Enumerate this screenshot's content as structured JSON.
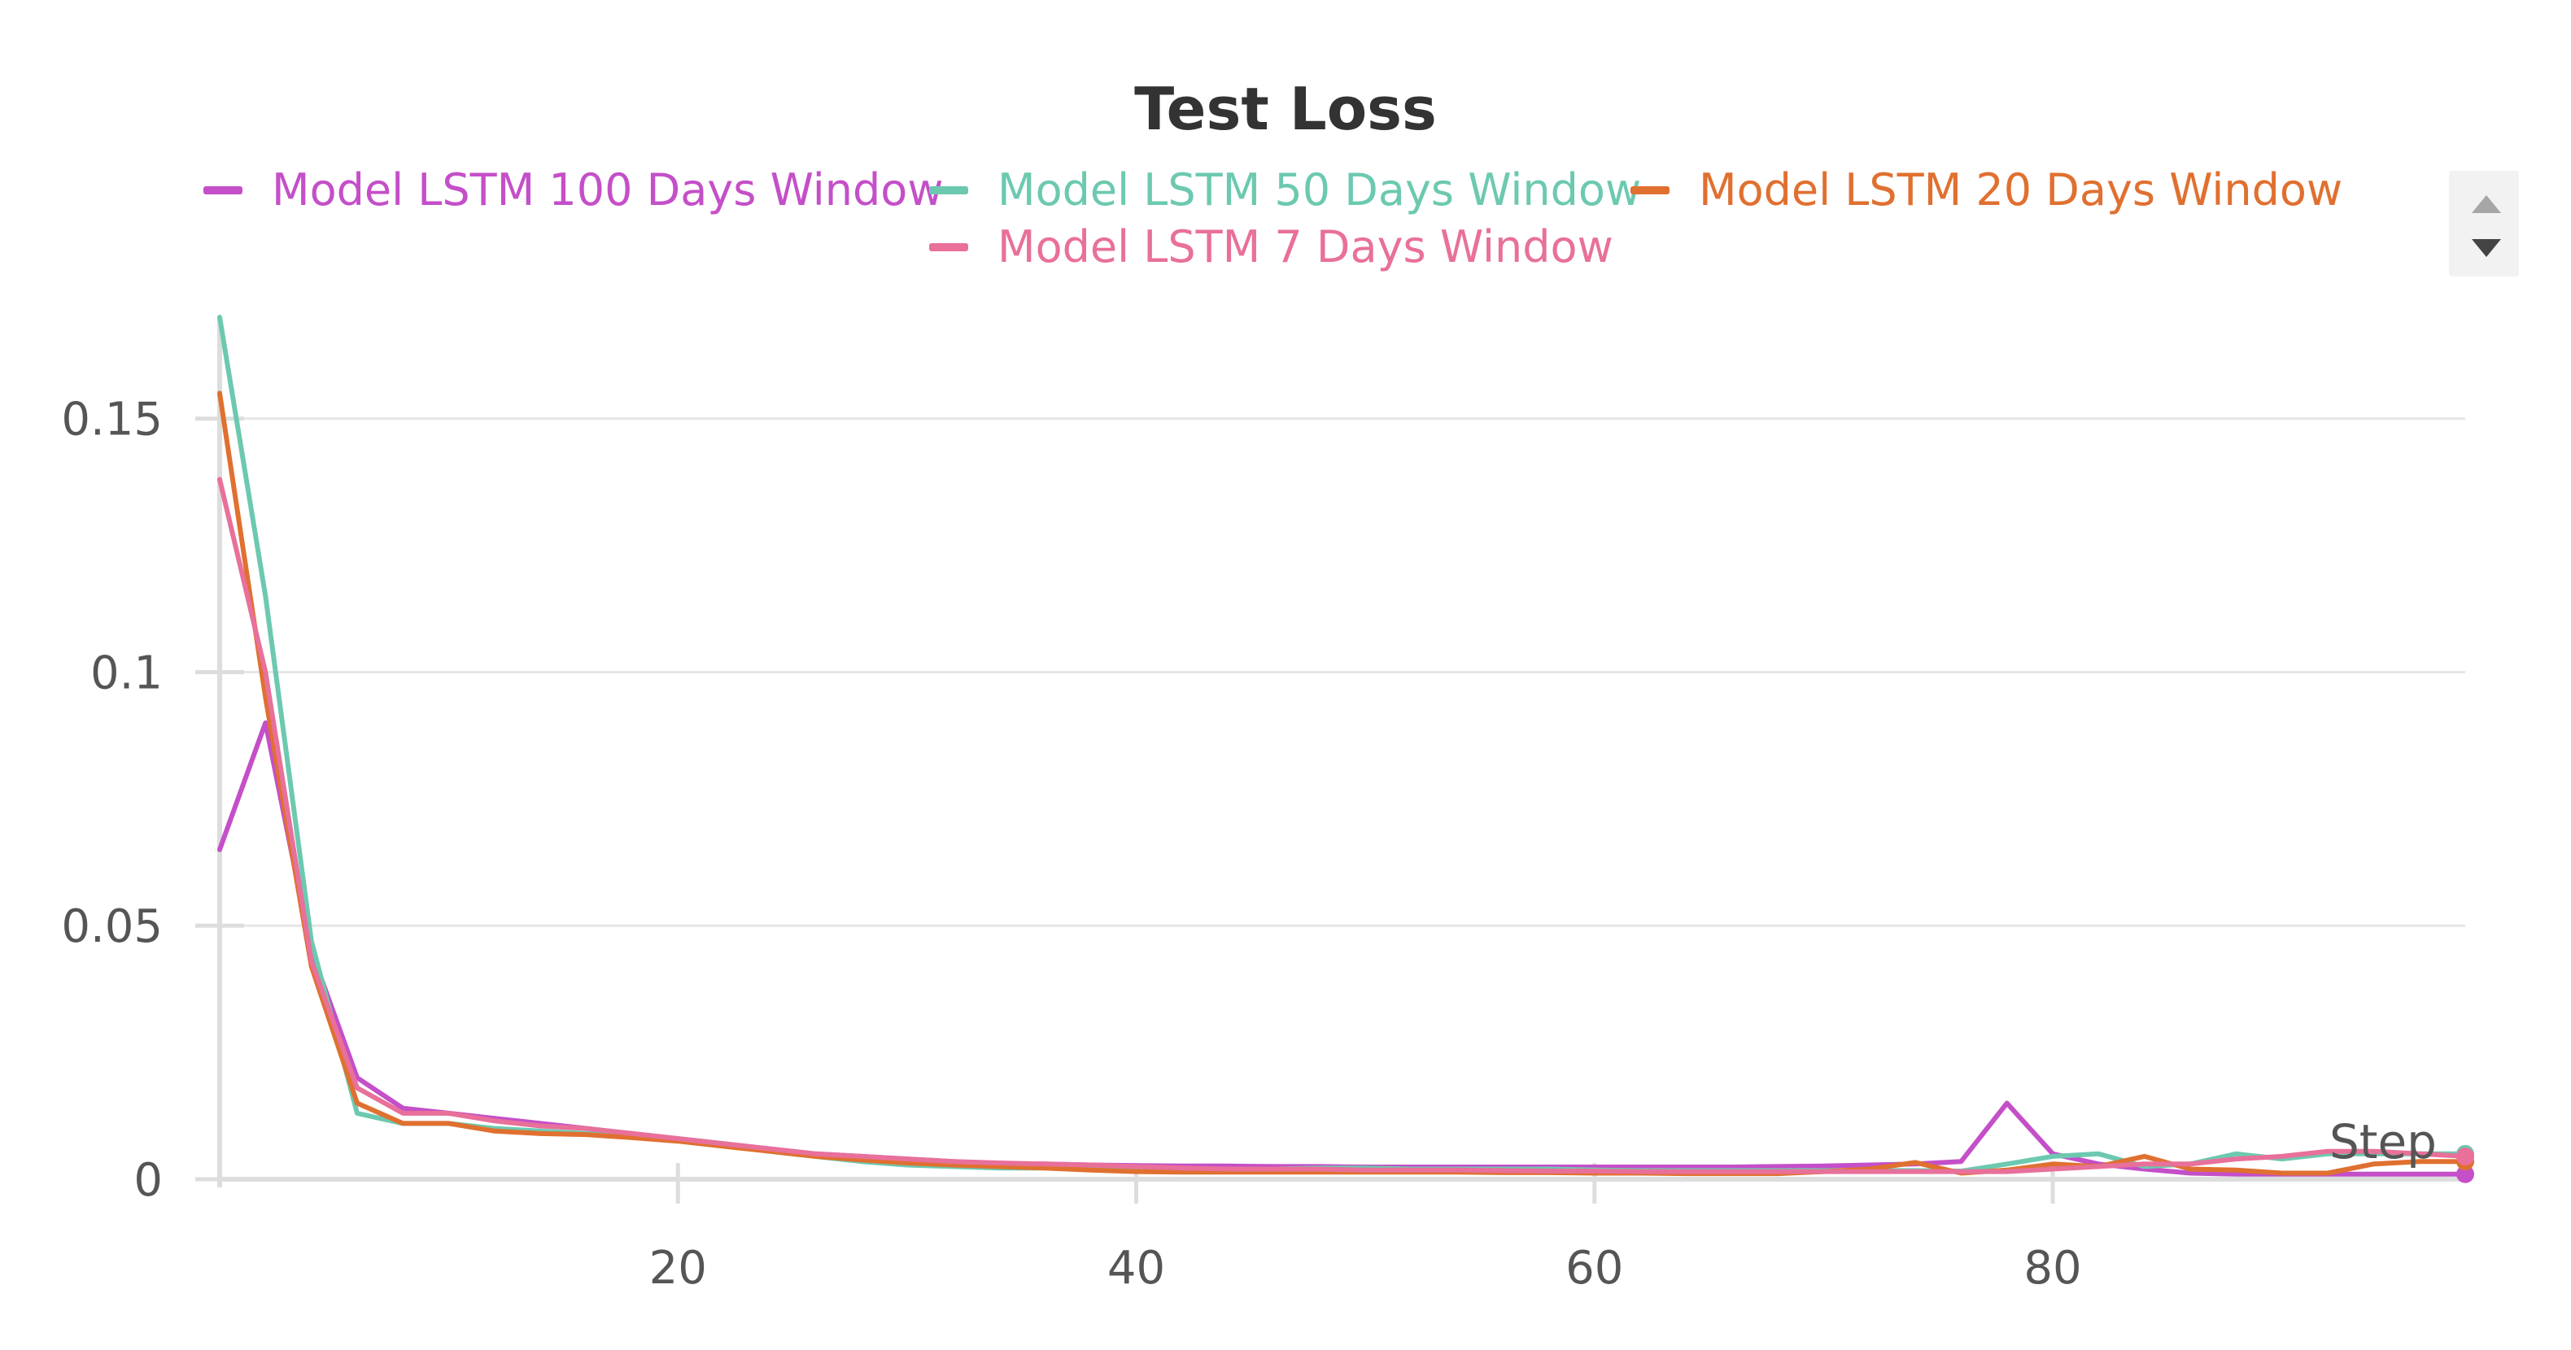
{
  "chart_data": {
    "type": "line",
    "title": "Test Loss",
    "xlabel": "Step",
    "ylabel": "",
    "xlim": [
      0,
      98
    ],
    "ylim": [
      0,
      0.17
    ],
    "xticks": [
      20,
      40,
      60,
      80
    ],
    "xtick_labels": [
      "20",
      "40",
      "60",
      "80"
    ],
    "yticks": [
      0,
      0.05,
      0.1,
      0.15
    ],
    "ytick_labels": [
      "0",
      "0.05",
      "0.1",
      "0.15"
    ],
    "grid": true,
    "legend_position": "top",
    "x": [
      0,
      2,
      4,
      6,
      8,
      10,
      12,
      14,
      16,
      18,
      20,
      22,
      24,
      26,
      28,
      30,
      32,
      34,
      36,
      38,
      40,
      42,
      44,
      46,
      48,
      50,
      52,
      54,
      56,
      58,
      60,
      62,
      64,
      66,
      68,
      70,
      72,
      74,
      76,
      78,
      80,
      82,
      84,
      86,
      88,
      90,
      92,
      94,
      96,
      98
    ],
    "series": [
      {
        "name": "Model LSTM 100 Days Window",
        "color": "#c44fc8",
        "values": [
          0.065,
          0.09,
          0.045,
          0.02,
          0.014,
          0.013,
          0.012,
          0.011,
          0.01,
          0.009,
          0.008,
          0.007,
          0.006,
          0.005,
          0.0045,
          0.004,
          0.0035,
          0.003,
          0.003,
          0.0028,
          0.0027,
          0.0026,
          0.0026,
          0.0025,
          0.0025,
          0.0024,
          0.0024,
          0.0024,
          0.0024,
          0.0024,
          0.0024,
          0.0024,
          0.0024,
          0.0024,
          0.0025,
          0.0026,
          0.0028,
          0.003,
          0.0035,
          0.015,
          0.005,
          0.003,
          0.002,
          0.0012,
          0.001,
          0.001,
          0.001,
          0.001,
          0.001,
          0.001
        ]
      },
      {
        "name": "Model LSTM 50 Days Window",
        "color": "#6cc9b0",
        "values": [
          0.17,
          0.115,
          0.047,
          0.013,
          0.011,
          0.011,
          0.01,
          0.0095,
          0.009,
          0.0085,
          0.008,
          0.007,
          0.0055,
          0.0045,
          0.0035,
          0.0028,
          0.0025,
          0.0022,
          0.0022,
          0.0022,
          0.002,
          0.002,
          0.002,
          0.002,
          0.0022,
          0.0022,
          0.002,
          0.002,
          0.002,
          0.002,
          0.0018,
          0.0017,
          0.0017,
          0.0017,
          0.0017,
          0.0017,
          0.0017,
          0.0017,
          0.0016,
          0.003,
          0.0045,
          0.005,
          0.0025,
          0.003,
          0.005,
          0.004,
          0.005,
          0.005,
          0.005,
          0.005
        ]
      },
      {
        "name": "Model LSTM 20 Days Window",
        "color": "#e07030",
        "values": [
          0.155,
          0.095,
          0.042,
          0.015,
          0.011,
          0.011,
          0.0095,
          0.009,
          0.0088,
          0.0082,
          0.0075,
          0.0065,
          0.0055,
          0.0045,
          0.0038,
          0.0032,
          0.0028,
          0.0025,
          0.0022,
          0.0018,
          0.0015,
          0.0014,
          0.0014,
          0.0014,
          0.0014,
          0.0014,
          0.0014,
          0.0014,
          0.0013,
          0.0013,
          0.0012,
          0.0012,
          0.0011,
          0.0011,
          0.0011,
          0.0015,
          0.002,
          0.0033,
          0.0012,
          0.0018,
          0.003,
          0.0025,
          0.0045,
          0.002,
          0.0018,
          0.0012,
          0.0012,
          0.003,
          0.0035,
          0.0035
        ]
      },
      {
        "name": "Model LSTM 7 Days Window",
        "color": "#e8709a",
        "values": [
          0.138,
          0.1,
          0.043,
          0.018,
          0.013,
          0.013,
          0.0115,
          0.0105,
          0.01,
          0.009,
          0.008,
          0.007,
          0.006,
          0.005,
          0.0045,
          0.004,
          0.0035,
          0.0032,
          0.003,
          0.0028,
          0.0025,
          0.0022,
          0.002,
          0.002,
          0.002,
          0.0018,
          0.0018,
          0.0018,
          0.0017,
          0.0016,
          0.0016,
          0.0015,
          0.0015,
          0.0015,
          0.0015,
          0.0015,
          0.0015,
          0.0015,
          0.0015,
          0.0015,
          0.002,
          0.0025,
          0.003,
          0.003,
          0.004,
          0.0045,
          0.0055,
          0.0055,
          0.005,
          0.0045
        ]
      }
    ]
  }
}
